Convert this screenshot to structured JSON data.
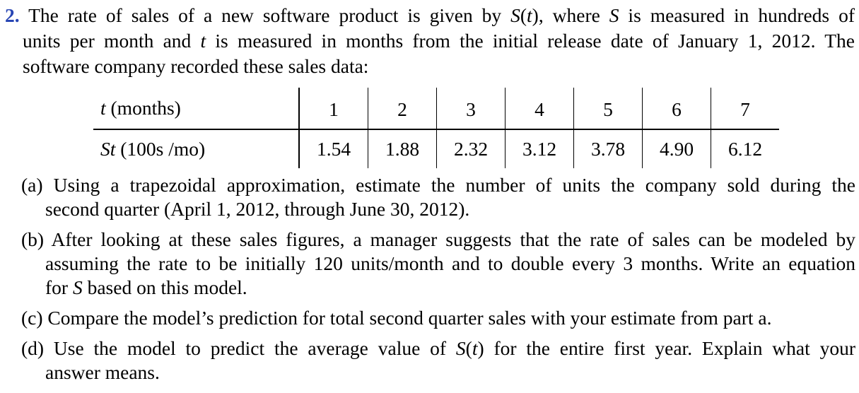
{
  "problem": {
    "number": "2.",
    "intro_line1": "The rate of sales of a new software product is given by S(t), where S is measured in hundreds of",
    "intro_line2": "units per month and t is measured in months from the initial release date of January 1, 2012. The",
    "intro_line3": "software company recorded these sales data:"
  },
  "table": {
    "header_t": "t (months)",
    "header_s": "St (100s /mo)",
    "t_values": [
      "1",
      "2",
      "3",
      "4",
      "5",
      "6",
      "7"
    ],
    "s_values": [
      "1.54",
      "1.88",
      "2.32",
      "3.12",
      "3.78",
      "4.90",
      "6.12"
    ]
  },
  "parts": {
    "a_line1": "(a) Using a trapezoidal approximation, estimate the number of units the company sold during the",
    "a_line2": "second quarter (April 1, 2012, through June 30, 2012).",
    "b_line1": "(b) After looking at these sales figures, a manager suggests that the rate of sales can be modeled by",
    "b_line2": "assuming the rate to be initially 120 units/month and to double every 3 months. Write an equation",
    "b_line3": "for S based on this model.",
    "c_line1": "(c) Compare the model’s prediction for total second quarter sales with your estimate from part a.",
    "d_line1": "(d) Use the model to predict the average value of S(t) for the entire first year. Explain what your",
    "d_line2": "answer means."
  }
}
